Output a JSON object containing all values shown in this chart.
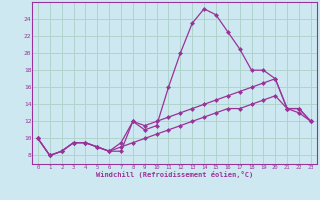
{
  "xlabel": "Windchill (Refroidissement éolien,°C)",
  "bg_color": "#cde8f0",
  "grid_color": "#b0d4cc",
  "line_color": "#993399",
  "x_ticks": [
    0,
    1,
    2,
    3,
    4,
    5,
    6,
    7,
    8,
    9,
    10,
    11,
    12,
    13,
    14,
    15,
    16,
    17,
    18,
    19,
    20,
    21,
    22,
    23
  ],
  "y_ticks": [
    8,
    10,
    12,
    14,
    16,
    18,
    20,
    22,
    24
  ],
  "ylim": [
    7.0,
    26.0
  ],
  "xlim": [
    -0.5,
    23.5
  ],
  "series1_y": [
    10,
    8,
    8.5,
    9.5,
    9.5,
    9,
    8.5,
    8.5,
    12,
    11,
    11.5,
    16,
    20,
    23.5,
    25.2,
    24.5,
    22.5,
    20.5,
    18,
    18,
    17,
    13.5,
    13.5,
    12
  ],
  "series2_y": [
    10,
    8,
    8.5,
    9.5,
    9.5,
    9,
    8.5,
    9.5,
    12,
    11.5,
    12,
    12.5,
    13,
    13.5,
    14,
    14.5,
    15,
    15.5,
    16,
    16.5,
    17,
    13.5,
    13.5,
    12
  ],
  "series3_y": [
    10,
    8,
    8.5,
    9.5,
    9.5,
    9,
    8.5,
    9,
    9.5,
    10,
    10.5,
    11,
    11.5,
    12,
    12.5,
    13,
    13.5,
    13.5,
    14,
    14.5,
    15,
    13.5,
    13,
    12
  ]
}
